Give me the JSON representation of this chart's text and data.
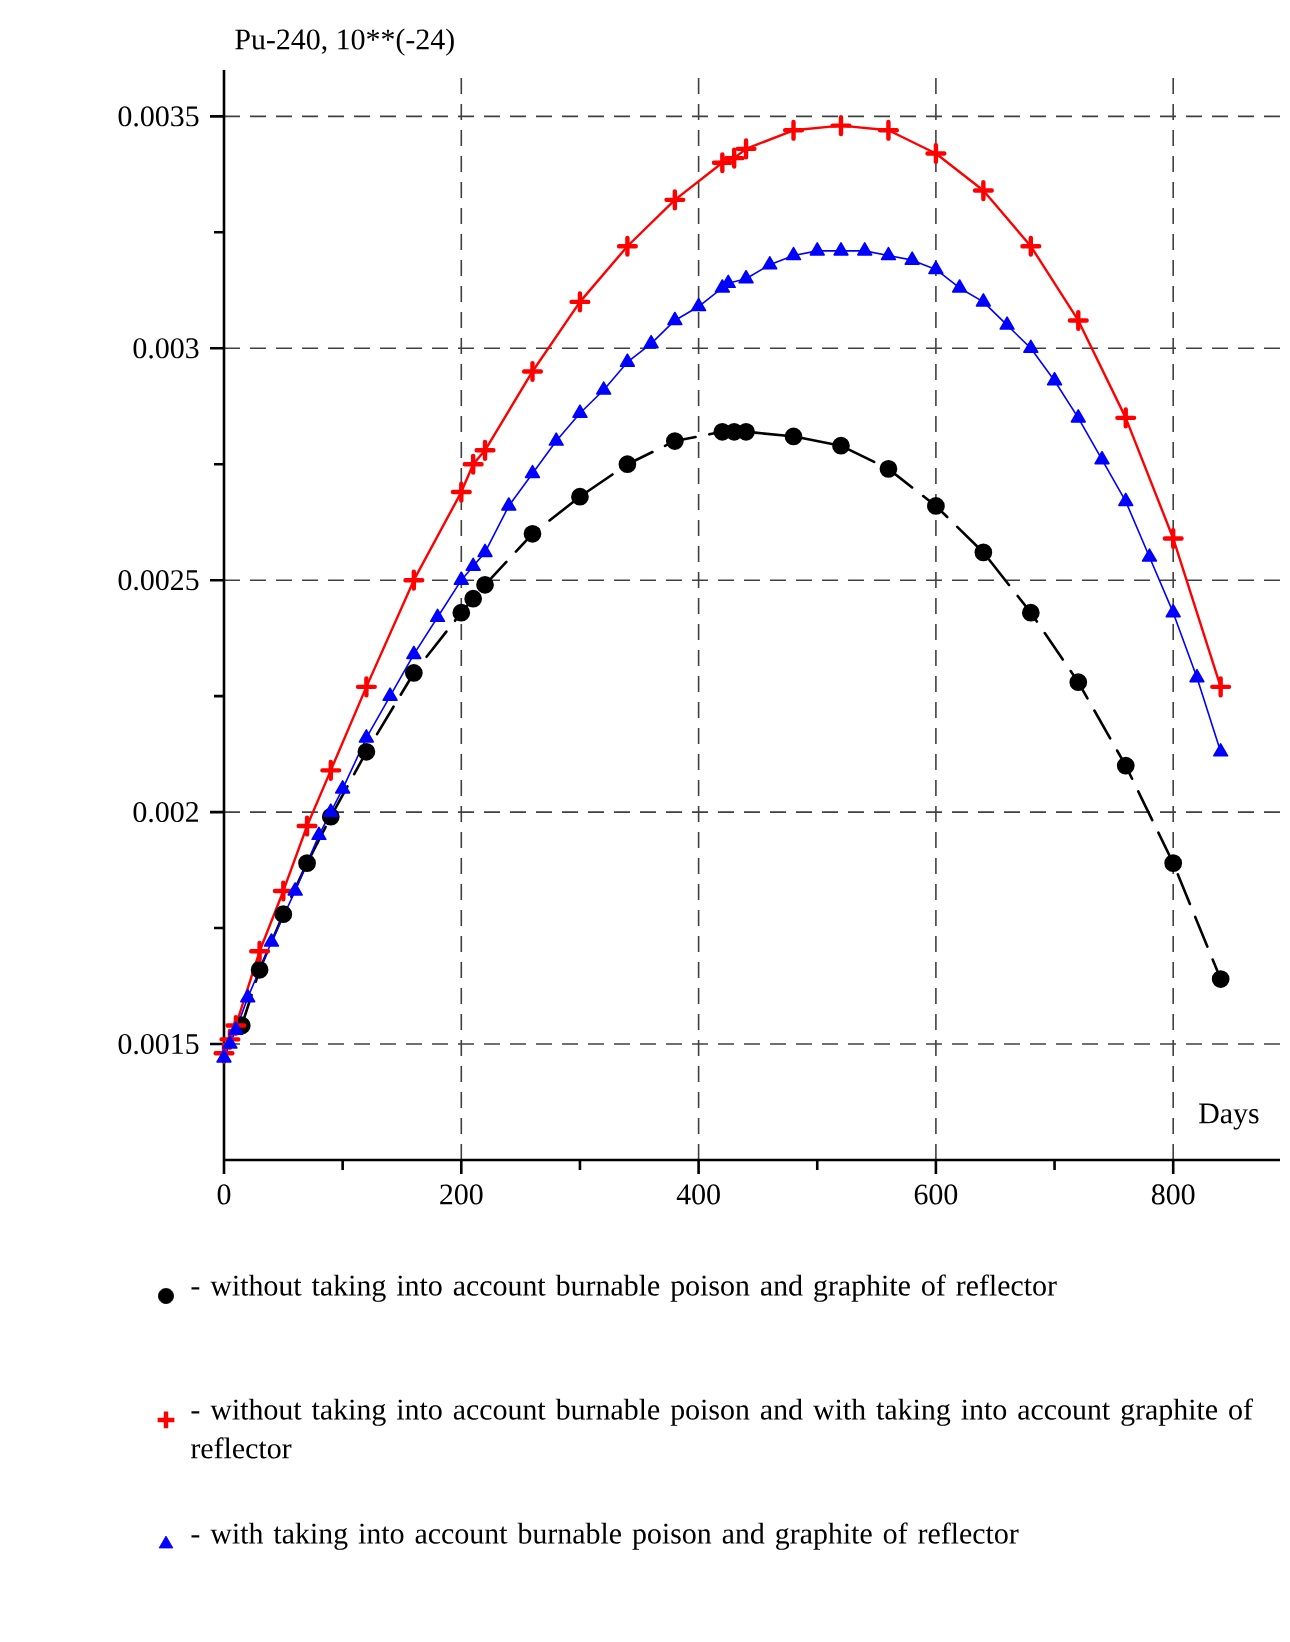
{
  "chart_data": {
    "type": "line",
    "ylabel": "Pu-240, 10**(-24)",
    "xlabel": "Days",
    "xlim": [
      0,
      890
    ],
    "ylim": [
      0.00125,
      0.0036
    ],
    "xticks": [
      0,
      {
        "value": 100,
        "label": null
      },
      200,
      {
        "value": 300,
        "label": null
      },
      400,
      {
        "value": 500,
        "label": null
      },
      600,
      {
        "value": 700,
        "label": null
      },
      800
    ],
    "yticks": [
      0.0015,
      {
        "value": 0.00175,
        "label": null
      },
      0.002,
      {
        "value": 0.00225,
        "label": null
      },
      0.0025,
      {
        "value": 0.00275,
        "label": null
      },
      0.003,
      {
        "value": 0.00325,
        "label": null
      },
      0.0035
    ],
    "grid": true,
    "legend": "bottom",
    "series": [
      {
        "name": "- without taking into account burnable poison and graphite of reflector",
        "color": "#000000",
        "marker": "circle",
        "line_style": "dashed",
        "x": [
          15,
          30,
          50,
          70,
          90,
          120,
          160,
          200,
          210,
          220,
          260,
          300,
          340,
          380,
          420,
          430,
          440,
          480,
          520,
          560,
          600,
          640,
          680,
          720,
          760,
          800,
          840
        ],
        "values": [
          0.00154,
          0.00166,
          0.00178,
          0.00189,
          0.00199,
          0.00213,
          0.0023,
          0.00243,
          0.00246,
          0.00249,
          0.0026,
          0.00268,
          0.00275,
          0.0028,
          0.00282,
          0.00282,
          0.00282,
          0.00281,
          0.00279,
          0.00274,
          0.00266,
          0.00256,
          0.00243,
          0.00228,
          0.0021,
          0.00189,
          0.00164
        ]
      },
      {
        "name": "- without taking into account burnable poison and with taking into account graphite of reflector",
        "color": "#ff0000",
        "marker": "cross",
        "line_style": "solid",
        "x": [
          0,
          5,
          10,
          30,
          50,
          70,
          90,
          120,
          160,
          200,
          210,
          220,
          260,
          300,
          340,
          380,
          420,
          430,
          440,
          480,
          520,
          560,
          600,
          640,
          680,
          720,
          760,
          800,
          840
        ],
        "values": [
          0.00148,
          0.00151,
          0.00154,
          0.0017,
          0.00183,
          0.00197,
          0.00209,
          0.00227,
          0.0025,
          0.00269,
          0.00275,
          0.00278,
          0.00295,
          0.0031,
          0.00322,
          0.00332,
          0.0034,
          0.00341,
          0.00343,
          0.00347,
          0.00348,
          0.00347,
          0.00342,
          0.00334,
          0.00322,
          0.00306,
          0.00285,
          0.00259,
          0.00227
        ]
      },
      {
        "name": "- with taking into account burnable poison and graphite of reflector",
        "color": "#0000ff",
        "marker": "triangle",
        "line_style": "solid",
        "x": [
          0,
          5,
          10,
          20,
          40,
          60,
          80,
          90,
          100,
          120,
          140,
          160,
          180,
          200,
          210,
          220,
          240,
          260,
          280,
          300,
          320,
          340,
          360,
          380,
          400,
          420,
          425,
          440,
          460,
          480,
          500,
          520,
          540,
          560,
          580,
          600,
          620,
          640,
          660,
          680,
          700,
          720,
          740,
          760,
          780,
          800,
          820,
          840
        ],
        "values": [
          0.00147,
          0.0015,
          0.00153,
          0.0016,
          0.00172,
          0.00183,
          0.00195,
          0.002,
          0.00205,
          0.00216,
          0.00225,
          0.00234,
          0.00242,
          0.0025,
          0.00253,
          0.00256,
          0.00266,
          0.00273,
          0.0028,
          0.00286,
          0.00291,
          0.00297,
          0.00301,
          0.00306,
          0.00309,
          0.00313,
          0.00314,
          0.00315,
          0.00318,
          0.0032,
          0.00321,
          0.00321,
          0.00321,
          0.0032,
          0.00319,
          0.00317,
          0.00313,
          0.0031,
          0.00305,
          0.003,
          0.00293,
          0.00285,
          0.00276,
          0.00267,
          0.00255,
          0.00243,
          0.00229,
          0.00213
        ]
      }
    ]
  }
}
